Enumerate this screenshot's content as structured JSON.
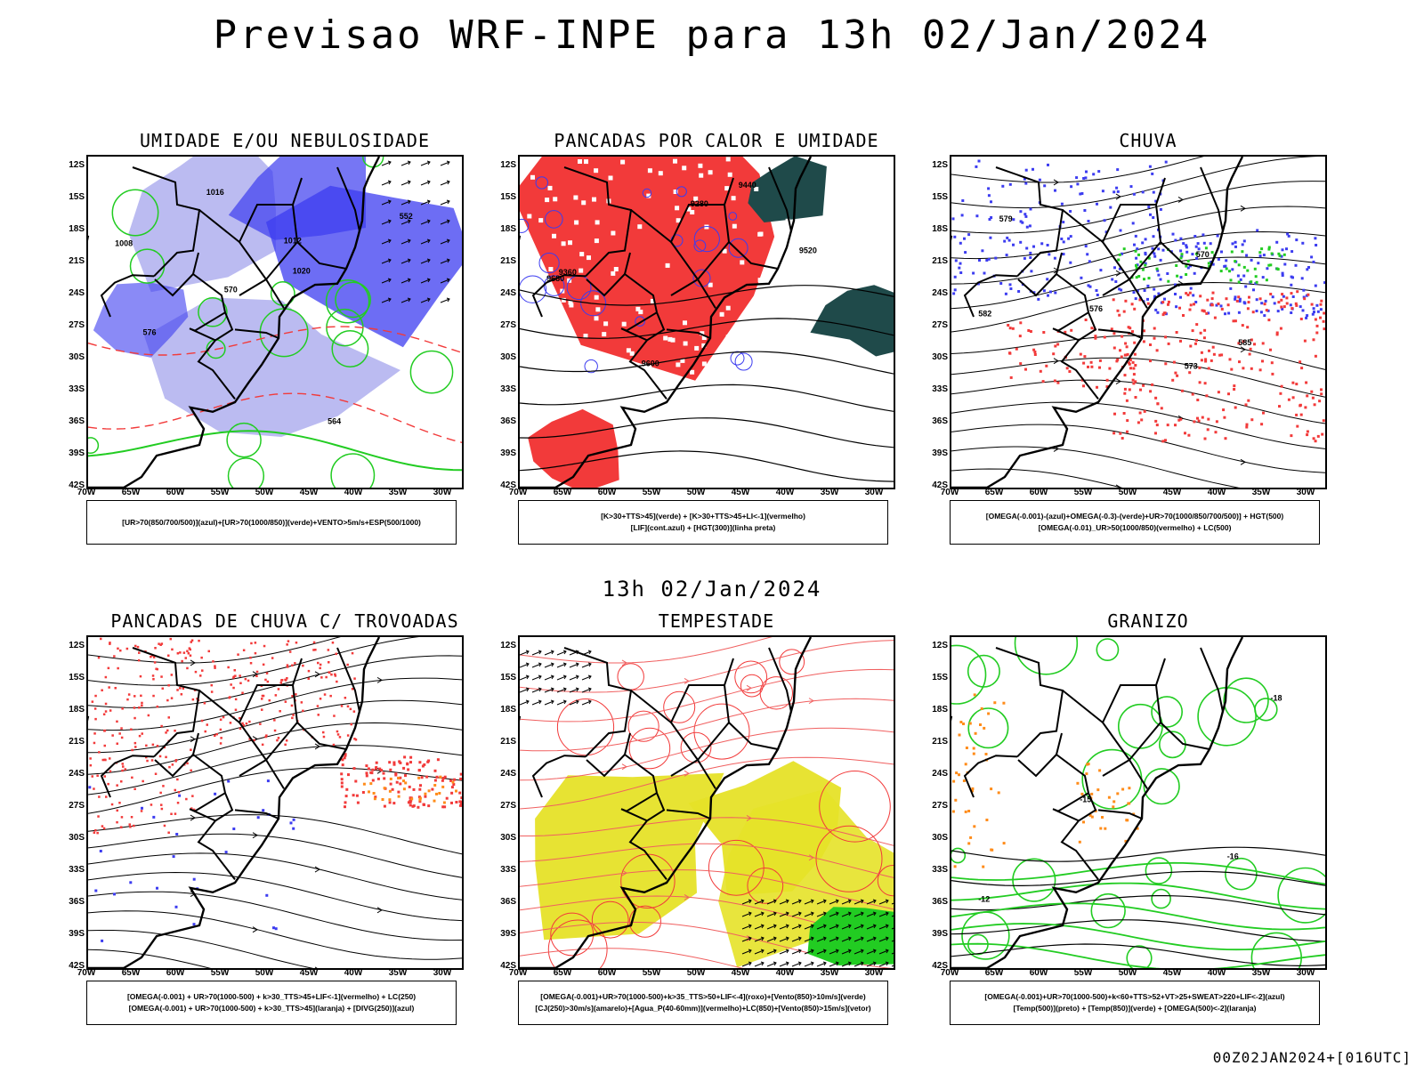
{
  "main_title": "Previsao WRF-INPE  para 13h 02/Jan/2024",
  "mid_title": "13h 02/Jan/2024",
  "footer": "00Z02JAN2024+[016UTC]",
  "lat_labels": [
    "12S",
    "15S",
    "18S",
    "21S",
    "24S",
    "27S",
    "30S",
    "33S",
    "36S",
    "39S",
    "42S"
  ],
  "lon_labels": [
    "70W",
    "65W",
    "60W",
    "55W",
    "50W",
    "45W",
    "40W",
    "35W",
    "30W"
  ],
  "colors": {
    "blue": "#3c3cf0",
    "lightblue": "#b4b4f0",
    "green": "#22cc22",
    "red": "#f23a3a",
    "orange": "#ff8c1a",
    "yellow": "#e6e228",
    "darkteal": "#1f4a4a"
  },
  "panels": [
    {
      "title": "UMIDADE E/OU NEBULOSIDADE",
      "legend": [
        "[UR>70(850/700/500)](azul)+[UR>70(1000/850)](verde)+VENTO>5m/s+ESP(500/1000)"
      ],
      "contour_labels": [
        "1008",
        "1012",
        "1016",
        "1020",
        "570",
        "576",
        "564",
        "552"
      ]
    },
    {
      "title": "PANCADAS POR CALOR E UMIDADE",
      "legend": [
        "[K>30+TTS>45](verde)  +  [K>30+TTS>45+LI<-1](vermelho)",
        "[LIF](cont.azul)  +  [HGT(300)](linha preta)"
      ],
      "contour_labels": [
        "9680",
        "9600",
        "9520",
        "9440",
        "9360",
        "9280"
      ]
    },
    {
      "title": "CHUVA",
      "legend": [
        "[OMEGA(-0.001)-(azul)+OMEGA(-0.3)-(verde)+UR>70(1000/850/700/500)]  +  HGT(500)",
        "[OMEGA(-0.01)_UR>50(1000/850)(vermelho)  +  LC(500)"
      ],
      "contour_labels": [
        "582",
        "579",
        "576",
        "573",
        "570",
        "585"
      ]
    },
    {
      "title": "PANCADAS DE CHUVA C/ TROVOADAS",
      "legend": [
        "[OMEGA(-0.001)  +  UR>70(1000-500)  +  k>30_TTS>45+LIF<-1](vermelho)  +  LC(250)",
        "[OMEGA(-0.001)  +  UR>70(1000-500)  +  k>30_TTS>45](laranja)  +  [DIVG(250)](azul)"
      ],
      "contour_labels": []
    },
    {
      "title": "TEMPESTADE",
      "legend": [
        "[OMEGA(-0.001)+UR>70(1000-500)+k>35_TTS>50+LIF<-4](roxo)+[Vento(850)>10m/s](verde)",
        "[CJ(250)>30m/s](amarelo)+[Agua_P(40-60mm)](vermelho)+LC(850)+[Vento(850)>15m/s](vetor)"
      ],
      "contour_labels": []
    },
    {
      "title": "GRANIZO",
      "legend": [
        "[OMEGA(-0.001)+UR>70(1000-500)+k<60+TTS>52+VT>25+SWEAT>220+LIF<-2](azul)",
        "[Temp(500)](preto)  +  [Temp(850)](verde)  +  [OMEGA(500)<-2](laranja)"
      ],
      "contour_labels": [
        "-12",
        "-15",
        "-18",
        "-16"
      ]
    }
  ]
}
